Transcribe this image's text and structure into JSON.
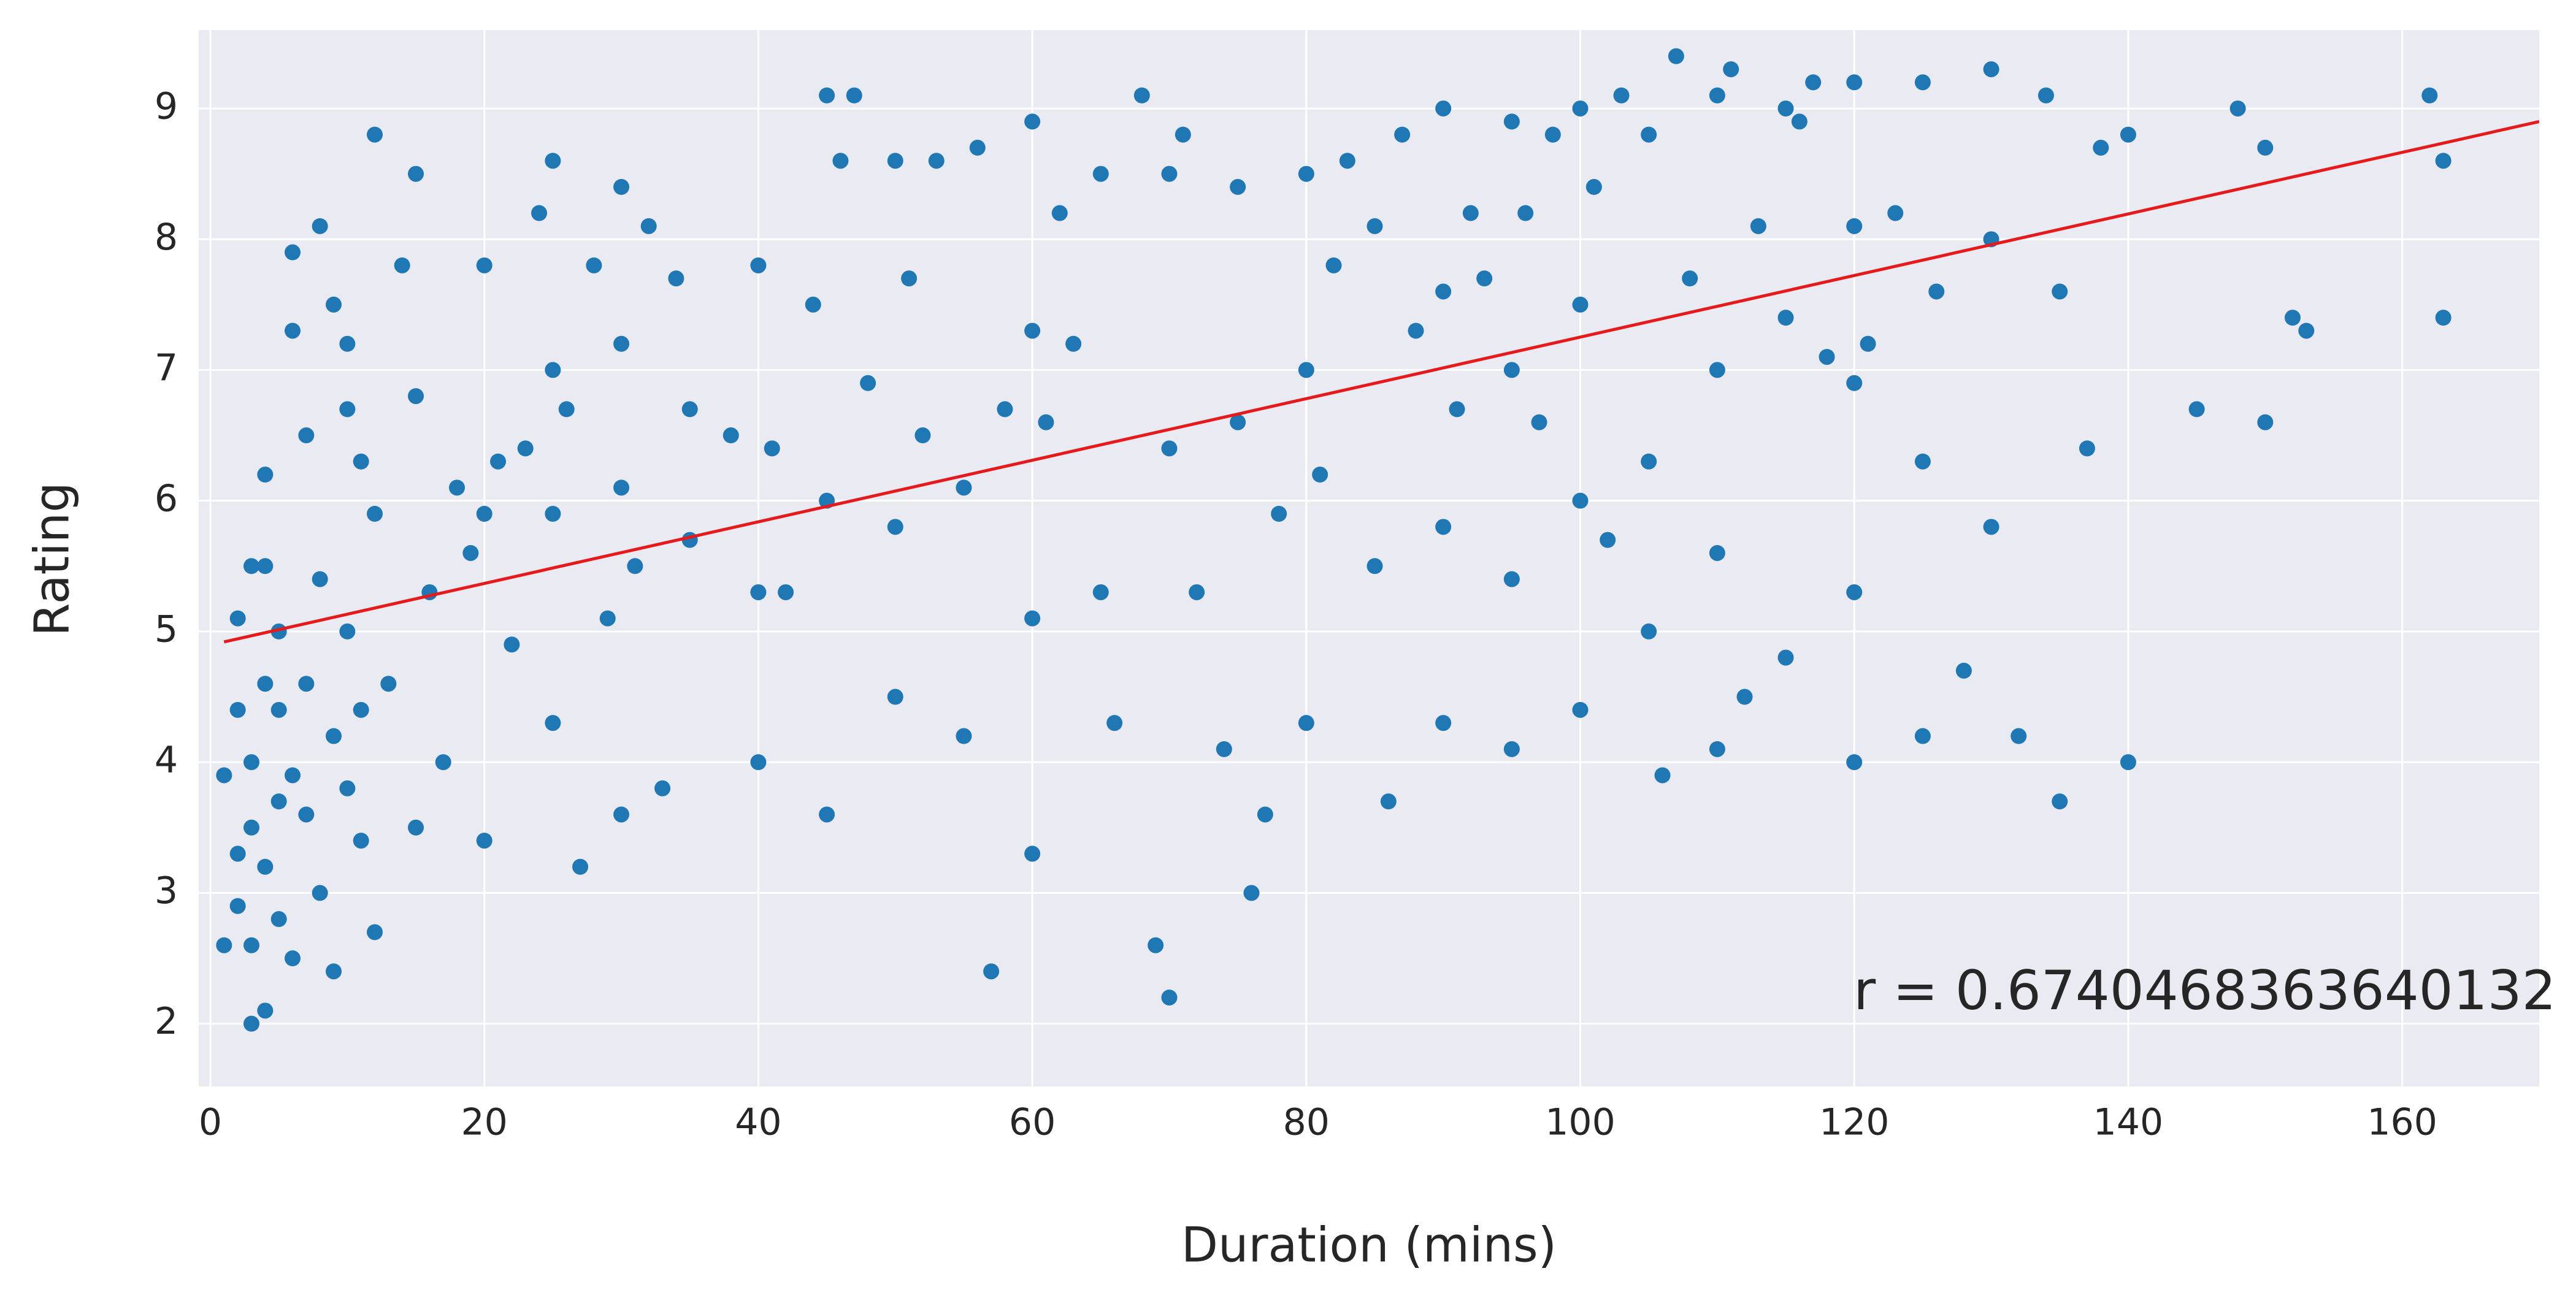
{
  "chart_data": {
    "type": "scatter",
    "xlabel": "Duration (mins)",
    "ylabel": "Rating",
    "annotation": "r = 0.6740468363640132",
    "xlim": [
      -0.85,
      170
    ],
    "ylim": [
      1.52,
      9.6
    ],
    "xticks": [
      0,
      20,
      40,
      60,
      80,
      100,
      120,
      140,
      160
    ],
    "yticks": [
      2,
      3,
      4,
      5,
      6,
      7,
      8,
      9
    ],
    "grid": true,
    "background": "#eaeaf2",
    "series": [
      {
        "color": "#1f77b4",
        "x": [
          2,
          2,
          2,
          3,
          3,
          3,
          3,
          4,
          4,
          4,
          4,
          5,
          5,
          5,
          6,
          6,
          6,
          7,
          7,
          8,
          8,
          9,
          9,
          10,
          10,
          10,
          11,
          11,
          12,
          12,
          1,
          1,
          2,
          3,
          4,
          5,
          6,
          7,
          8,
          9,
          10,
          11,
          12,
          13,
          14,
          15,
          15,
          15,
          16,
          17,
          18,
          19,
          20,
          20,
          20,
          21,
          22,
          23,
          24,
          25,
          25,
          25,
          25,
          26,
          27,
          28,
          29,
          30,
          30,
          30,
          30,
          31,
          32,
          33,
          34,
          35,
          35,
          38,
          40,
          40,
          40,
          41,
          42,
          44,
          45,
          45,
          45,
          46,
          47,
          48,
          50,
          50,
          50,
          51,
          52,
          53,
          55,
          55,
          56,
          57,
          58,
          60,
          60,
          60,
          60,
          61,
          62,
          63,
          65,
          65,
          66,
          68,
          69,
          70,
          70,
          70,
          71,
          72,
          74,
          75,
          75,
          76,
          77,
          78,
          80,
          80,
          80,
          81,
          82,
          83,
          85,
          85,
          86,
          87,
          88,
          90,
          90,
          90,
          90,
          91,
          92,
          93,
          95,
          95,
          95,
          95,
          96,
          97,
          98,
          100,
          100,
          100,
          100,
          101,
          102,
          103,
          105,
          105,
          105,
          106,
          107,
          108,
          110,
          110,
          110,
          110,
          111,
          112,
          113,
          115,
          115,
          115,
          116,
          117,
          118,
          120,
          120,
          120,
          120,
          120,
          121,
          123,
          125,
          125,
          125,
          126,
          128,
          130,
          130,
          130,
          132,
          134,
          135,
          135,
          137,
          138,
          140,
          140,
          145,
          148,
          150,
          150,
          152,
          153,
          162,
          163,
          163
        ],
        "values": [
          3.3,
          2.9,
          4.4,
          3.5,
          2.6,
          4.0,
          2.0,
          3.2,
          2.1,
          4.6,
          5.5,
          3.7,
          2.8,
          5.0,
          3.9,
          2.5,
          7.3,
          3.6,
          4.6,
          3.0,
          8.1,
          4.2,
          2.4,
          3.8,
          6.7,
          5.0,
          3.4,
          4.4,
          8.8,
          2.7,
          3.9,
          2.6,
          5.1,
          5.5,
          6.2,
          4.4,
          7.9,
          6.5,
          5.4,
          7.5,
          7.2,
          6.3,
          5.9,
          4.6,
          7.8,
          8.5,
          6.8,
          3.5,
          5.3,
          4.0,
          6.1,
          5.6,
          7.8,
          3.4,
          5.9,
          6.3,
          4.9,
          6.4,
          8.2,
          8.6,
          7.0,
          5.9,
          4.3,
          6.7,
          3.2,
          7.8,
          5.1,
          8.4,
          6.1,
          3.6,
          7.2,
          5.5,
          8.1,
          3.8,
          7.7,
          6.7,
          5.7,
          6.5,
          7.8,
          5.3,
          4.0,
          6.4,
          5.3,
          7.5,
          9.1,
          6.0,
          3.6,
          8.6,
          9.1,
          6.9,
          8.6,
          5.8,
          4.5,
          7.7,
          6.5,
          8.6,
          6.1,
          4.2,
          8.7,
          2.4,
          6.7,
          8.9,
          7.3,
          5.1,
          3.3,
          6.6,
          8.2,
          7.2,
          8.5,
          5.3,
          4.3,
          9.1,
          2.6,
          8.5,
          6.4,
          2.2,
          8.8,
          5.3,
          4.1,
          8.4,
          6.6,
          3.0,
          3.6,
          5.9,
          8.5,
          7.0,
          4.3,
          6.2,
          7.8,
          8.6,
          8.1,
          5.5,
          3.7,
          8.8,
          7.3,
          9.0,
          7.6,
          5.8,
          4.3,
          6.7,
          8.2,
          7.7,
          8.9,
          7.0,
          5.4,
          4.1,
          8.2,
          6.6,
          8.8,
          9.0,
          7.5,
          6.0,
          4.4,
          8.4,
          5.7,
          9.1,
          8.8,
          6.3,
          5.0,
          3.9,
          9.4,
          7.7,
          9.1,
          7.0,
          5.6,
          4.1,
          9.3,
          4.5,
          8.1,
          9.0,
          7.4,
          4.8,
          8.9,
          9.2,
          7.1,
          9.2,
          8.1,
          6.9,
          5.3,
          4.0,
          7.2,
          8.2,
          9.2,
          6.3,
          4.2,
          7.6,
          4.7,
          9.3,
          8.0,
          5.8,
          4.2,
          9.1,
          7.6,
          3.7,
          6.4,
          8.7,
          8.8,
          4.0,
          6.7,
          9.0,
          8.7,
          6.6,
          7.4,
          7.3,
          9.1,
          8.6,
          7.4
        ]
      }
    ],
    "trendline": {
      "color": "#e41a1c",
      "x": [
        1,
        170
      ],
      "y": [
        4.92,
        8.9
      ]
    }
  }
}
